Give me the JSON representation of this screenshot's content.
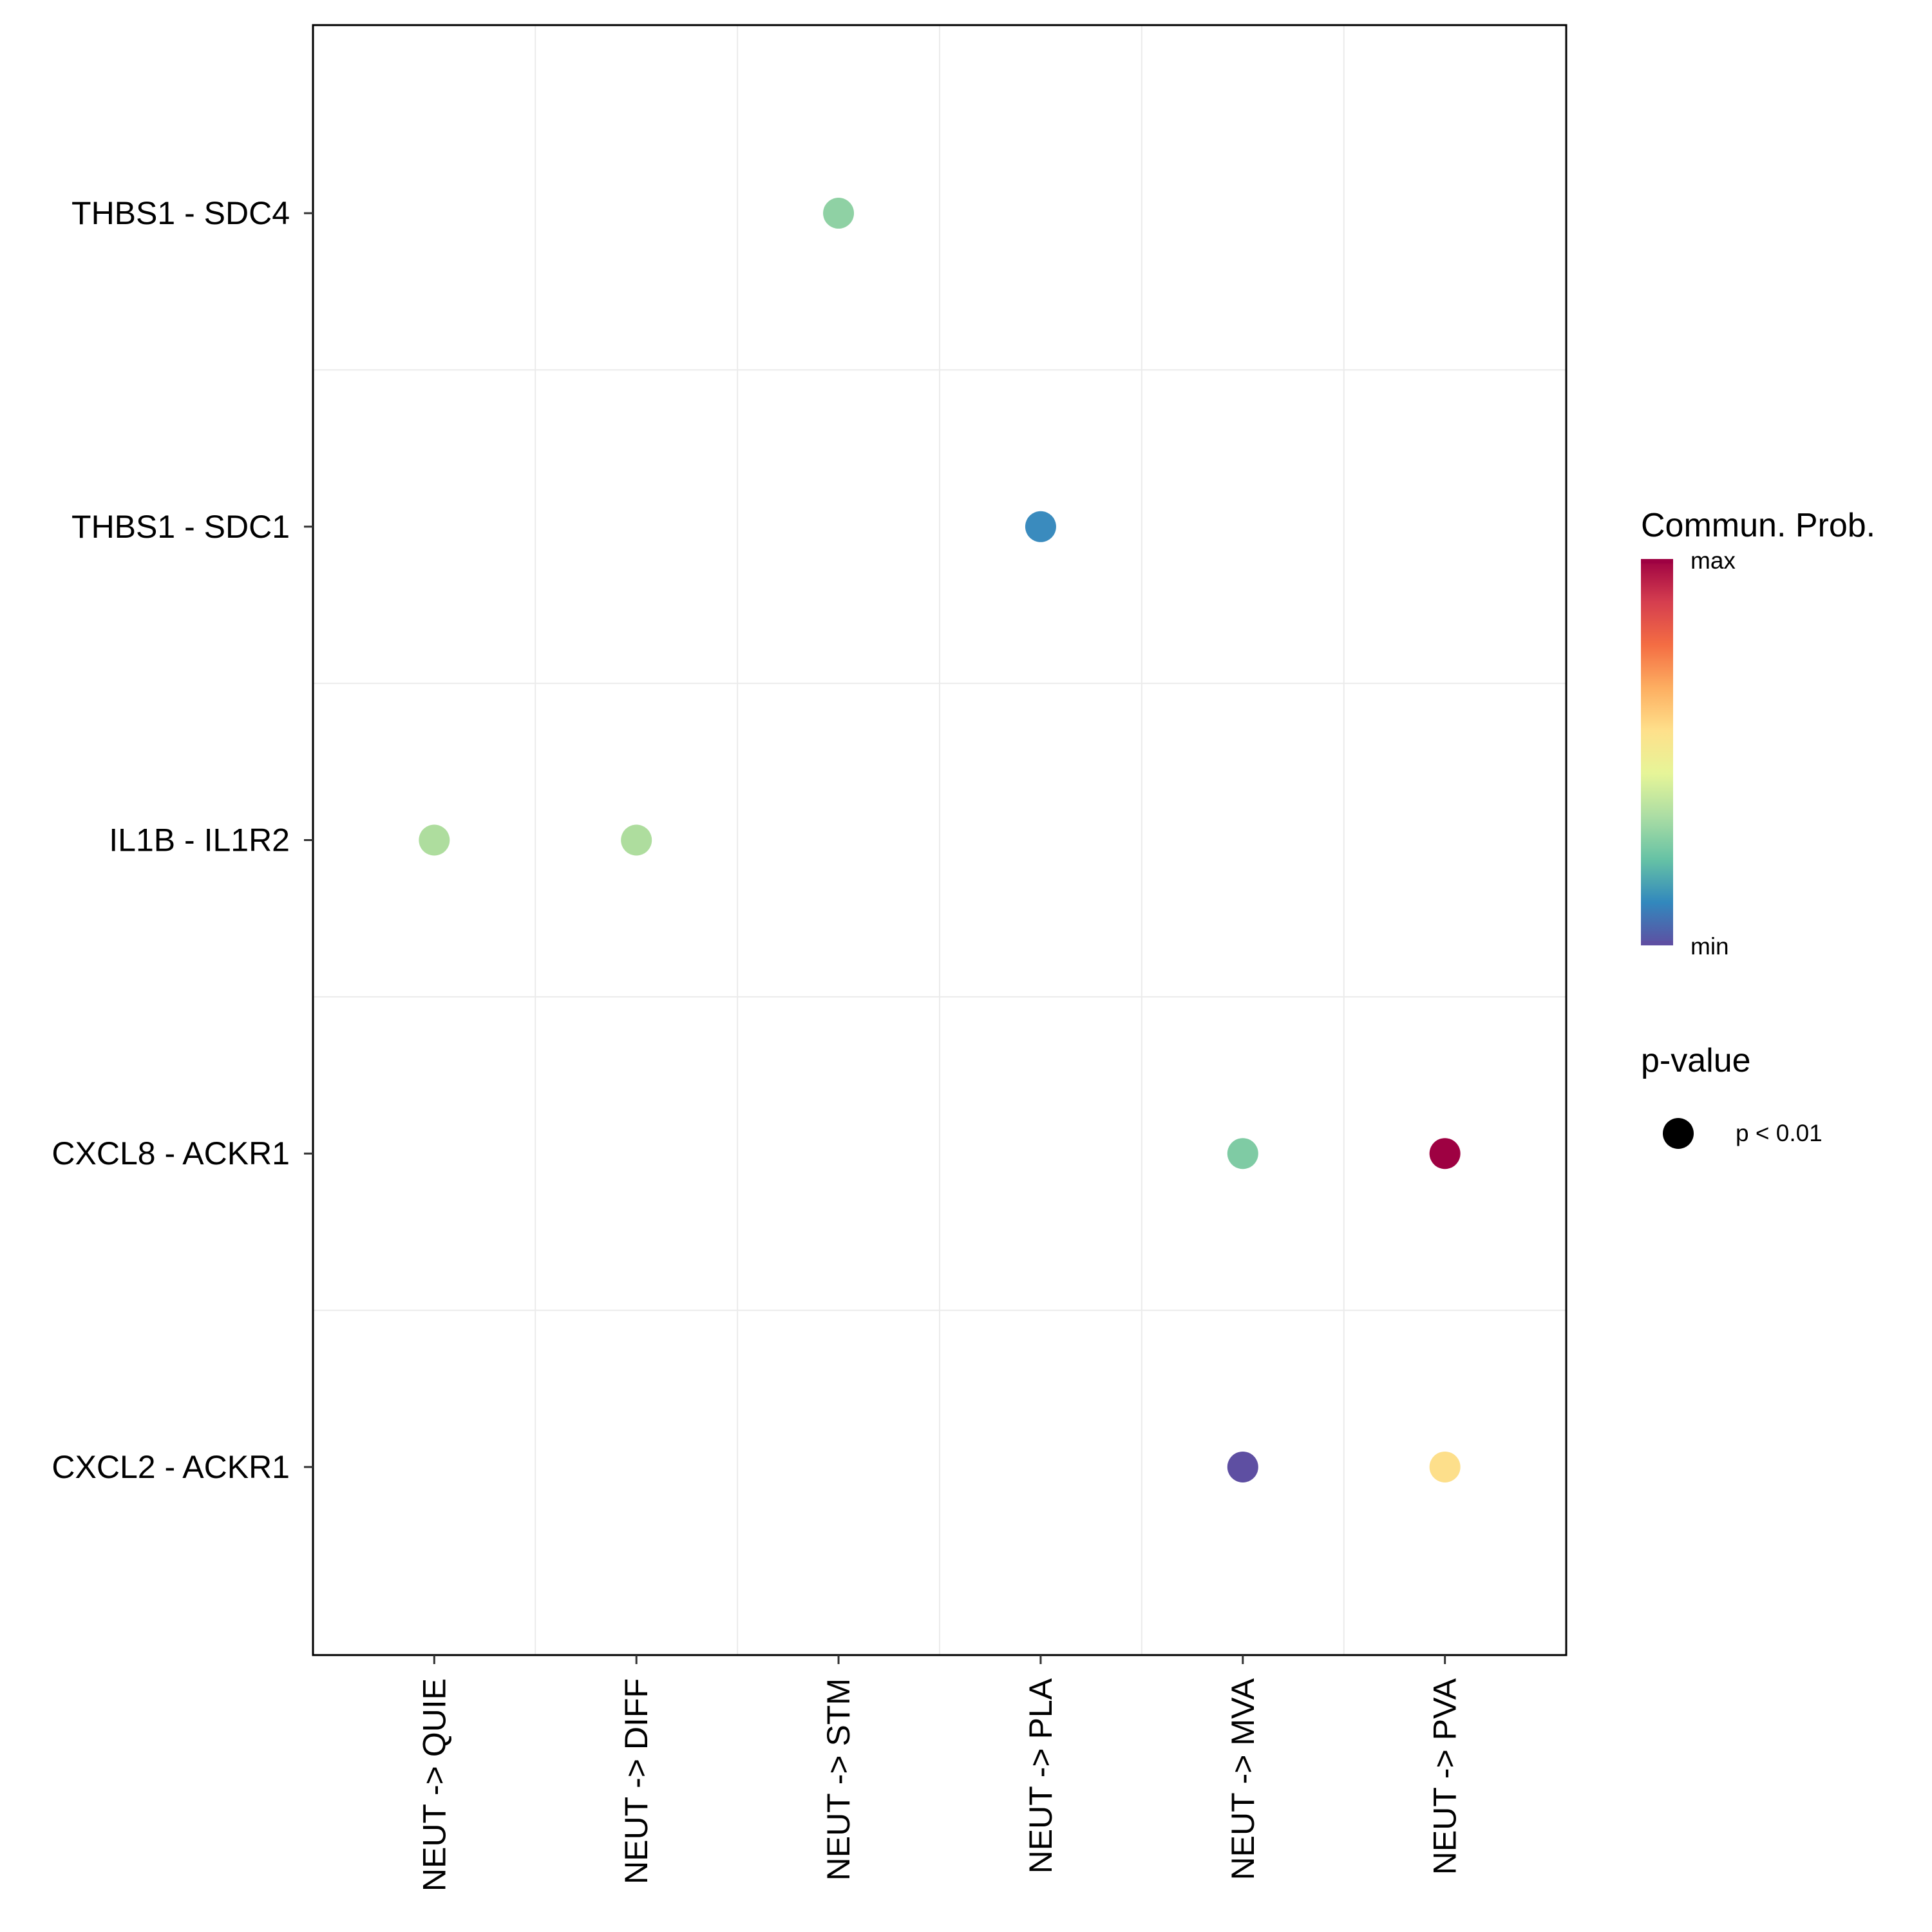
{
  "chart_data": {
    "type": "dot",
    "title": "",
    "xlabel": "",
    "ylabel": "",
    "x_categories": [
      "NEUT -> QUIE",
      "NEUT -> DIFF",
      "NEUT -> STM",
      "NEUT -> PLA",
      "NEUT -> MVA",
      "NEUT -> PVA"
    ],
    "y_categories": [
      "THBS1 - SDC4",
      "THBS1 - SDC1",
      "IL1B - IL1R2",
      "CXCL8 - ACKR1",
      "CXCL2 - ACKR1"
    ],
    "points": [
      {
        "x": "NEUT -> STM",
        "y": "THBS1 - SDC4",
        "prob": 0.33,
        "color": "#8FD1A4",
        "pvalue": "p < 0.01"
      },
      {
        "x": "NEUT -> PLA",
        "y": "THBS1 - SDC1",
        "prob": 0.12,
        "color": "#3A8BBE",
        "pvalue": "p < 0.01"
      },
      {
        "x": "NEUT -> QUIE",
        "y": "IL1B - IL1R2",
        "prob": 0.38,
        "color": "#AEDD9E",
        "pvalue": "p < 0.01"
      },
      {
        "x": "NEUT -> DIFF",
        "y": "IL1B - IL1R2",
        "prob": 0.38,
        "color": "#AEDD9E",
        "pvalue": "p < 0.01"
      },
      {
        "x": "NEUT -> MVA",
        "y": "CXCL8 - ACKR1",
        "prob": 0.3,
        "color": "#7FCBA4",
        "pvalue": "p < 0.01"
      },
      {
        "x": "NEUT -> PVA",
        "y": "CXCL8 - ACKR1",
        "prob": 1.0,
        "color": "#9E0142",
        "pvalue": "p < 0.01"
      },
      {
        "x": "NEUT -> MVA",
        "y": "CXCL2 - ACKR1",
        "prob": 0.0,
        "color": "#5E4FA2",
        "pvalue": "p < 0.01"
      },
      {
        "x": "NEUT -> PVA",
        "y": "CXCL2 - ACKR1",
        "prob": 0.52,
        "color": "#FDDF8B",
        "pvalue": "p < 0.01"
      }
    ],
    "colorbar": {
      "title": "Commun. Prob.",
      "max_label": "max",
      "min_label": "min",
      "colors": [
        "#9E0142",
        "#D53E4F",
        "#F46D43",
        "#FDAE61",
        "#FEE08B",
        "#E6F598",
        "#ABDDA4",
        "#66C2A5",
        "#3288BD",
        "#5E4FA2"
      ]
    },
    "size_legend": {
      "title": "p-value",
      "entries": [
        {
          "label": "p < 0.01",
          "color": "#000000"
        }
      ]
    },
    "grid": true,
    "legend_position": "right"
  }
}
